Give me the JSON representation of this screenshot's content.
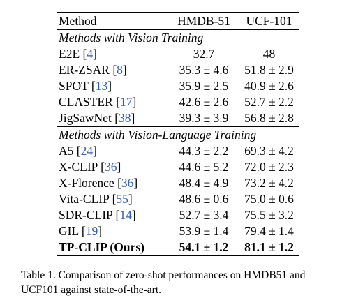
{
  "table": {
    "header": {
      "method": "Method",
      "hmdb": "HMDB-51",
      "ucf": "UCF-101"
    },
    "sections": [
      {
        "title": "Methods with Vision Training",
        "rows": [
          {
            "name": "E2E",
            "cite": "4",
            "hmdb": "32.7",
            "ucf": "48"
          },
          {
            "name": "ER-ZSAR",
            "cite": "8",
            "hmdb": "35.3 ± 4.6",
            "ucf": "51.8 ± 2.9"
          },
          {
            "name": "SPOT",
            "cite": "13",
            "hmdb": "35.9 ± 2.5",
            "ucf": "40.9 ± 2.6"
          },
          {
            "name": "CLASTER",
            "cite": "17",
            "hmdb": "42.6 ± 2.6",
            "ucf": "52.7 ± 2.2"
          },
          {
            "name": "JigSawNet",
            "cite": "38",
            "hmdb": "39.3 ± 3.9",
            "ucf": "56.8 ± 2.8"
          }
        ]
      },
      {
        "title": "Methods with Vision-Language Training",
        "rows": [
          {
            "name": "A5",
            "cite": "24",
            "hmdb": "44.3 ± 2.2",
            "ucf": "69.3 ± 4.2"
          },
          {
            "name": "X-CLIP",
            "cite": "36",
            "hmdb": "44.6 ± 5.2",
            "ucf": "72.0 ± 2.3"
          },
          {
            "name": "X-Florence",
            "cite": "36",
            "hmdb": "48.4 ± 4.9",
            "ucf": "73.2 ± 4.2"
          },
          {
            "name": "Vita-CLIP",
            "cite": "55",
            "hmdb": "48.6 ± 0.6",
            "ucf": "75.0 ± 0.6"
          },
          {
            "name": "SDR-CLIP",
            "cite": "14",
            "hmdb": "52.7 ± 3.4",
            "ucf": "75.5 ± 3.2"
          },
          {
            "name": "GIL",
            "cite": "19",
            "hmdb": "53.9 ± 1.4",
            "ucf": "79.4 ± 1.4"
          }
        ]
      }
    ],
    "ours": {
      "name": "TP-CLIP (Ours)",
      "hmdb": "54.1 ± 1.2",
      "ucf": "81.1 ± 1.2"
    }
  },
  "caption": "Table 1. Comparison of zero-shot performances on HMDB51 and UCF101 against state-of-the-art."
}
